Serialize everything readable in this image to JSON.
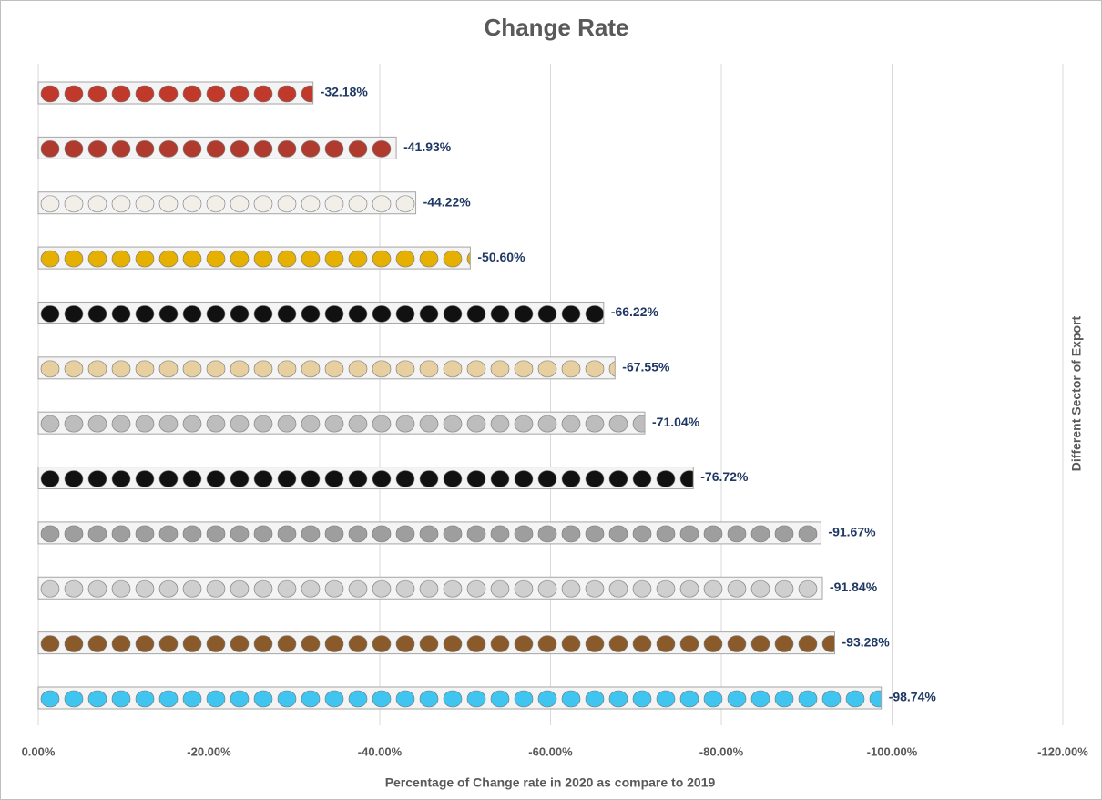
{
  "chart_data": {
    "type": "bar",
    "orientation": "horizontal",
    "title": "Change Rate",
    "xlabel": "Percentage of Change rate in 2020 as compare to 2019",
    "ylabel": "Different Sector of Export",
    "categories": [
      null,
      null,
      null,
      null,
      null,
      null,
      null,
      null,
      null,
      null,
      null,
      null
    ],
    "values": [
      -32.18,
      -41.93,
      -44.22,
      -50.6,
      -66.22,
      -67.55,
      -71.04,
      -76.72,
      -91.67,
      -91.84,
      -93.28,
      -98.74
    ],
    "value_labels": [
      "-32.18%",
      "-41.93%",
      "-44.22%",
      "-50.60%",
      "-66.22%",
      "-67.55%",
      "-71.04%",
      "-76.72%",
      "-91.67%",
      "-91.84%",
      "-93.28%",
      "-98.74%"
    ],
    "colors": [
      "#c0392b",
      "#b03a2e",
      "#f2efe9",
      "#e6b000",
      "#111111",
      "#e8cfa0",
      "#bdbdbd",
      "#111111",
      "#9e9e9e",
      "#cfcfcf",
      "#8b5a2b",
      "#3fc5f0"
    ],
    "xlim": [
      0,
      -120
    ],
    "xticks": [
      {
        "value": 0,
        "label": "0.00%"
      },
      {
        "value": -20,
        "label": "-20.00%"
      },
      {
        "value": -40,
        "label": "-40.00%"
      },
      {
        "value": -60,
        "label": "-60.00%"
      },
      {
        "value": -80,
        "label": "-80.00%"
      },
      {
        "value": -100,
        "label": "-100.00%"
      },
      {
        "value": -120,
        "label": "-120.00%"
      }
    ],
    "grid": true
  }
}
